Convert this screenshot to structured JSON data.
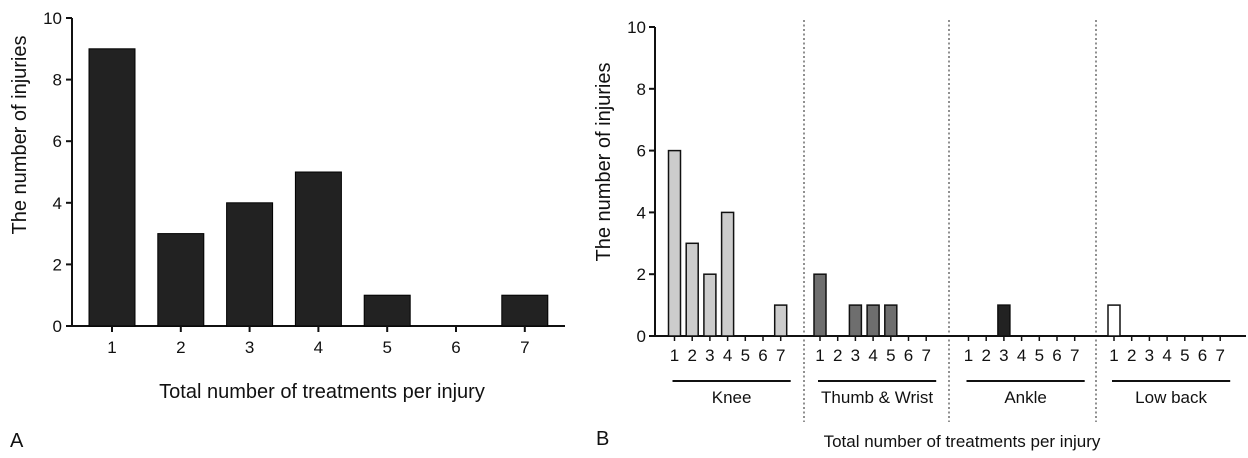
{
  "chart_data": [
    {
      "type": "bar",
      "panel_label": "A",
      "xlabel": "Total number of treatments per injury",
      "ylabel": "The number of injuries",
      "ylim": [
        0,
        10
      ],
      "yticks": [
        "0",
        "2",
        "4",
        "6",
        "8",
        "10"
      ],
      "categories": [
        "1",
        "2",
        "3",
        "4",
        "5",
        "6",
        "7"
      ],
      "values": [
        9,
        3,
        4,
        5,
        1,
        0,
        1
      ],
      "bar_color": "#222222",
      "grid": false
    },
    {
      "type": "bar",
      "panel_label": "B",
      "xlabel": "Total number of treatments per injury",
      "ylabel": "The number of injuries",
      "ylim": [
        0,
        10
      ],
      "yticks": [
        "0",
        "2",
        "4",
        "6",
        "8",
        "10"
      ],
      "categories": [
        "1",
        "2",
        "3",
        "4",
        "5",
        "6",
        "7"
      ],
      "groups": [
        {
          "name": "Knee",
          "values": [
            6,
            3,
            2,
            4,
            0,
            0,
            1
          ],
          "color": "#cccccc"
        },
        {
          "name": "Thumb & Wrist",
          "values": [
            2,
            0,
            1,
            1,
            1,
            0,
            0
          ],
          "color": "#6e6e6e"
        },
        {
          "name": "Ankle",
          "values": [
            0,
            0,
            1,
            0,
            0,
            0,
            0
          ],
          "color": "#222222"
        },
        {
          "name": "Low back",
          "values": [
            1,
            0,
            0,
            0,
            0,
            0,
            0
          ],
          "color": "#ffffff"
        }
      ],
      "group_separators": "dotted",
      "grid": false
    }
  ]
}
